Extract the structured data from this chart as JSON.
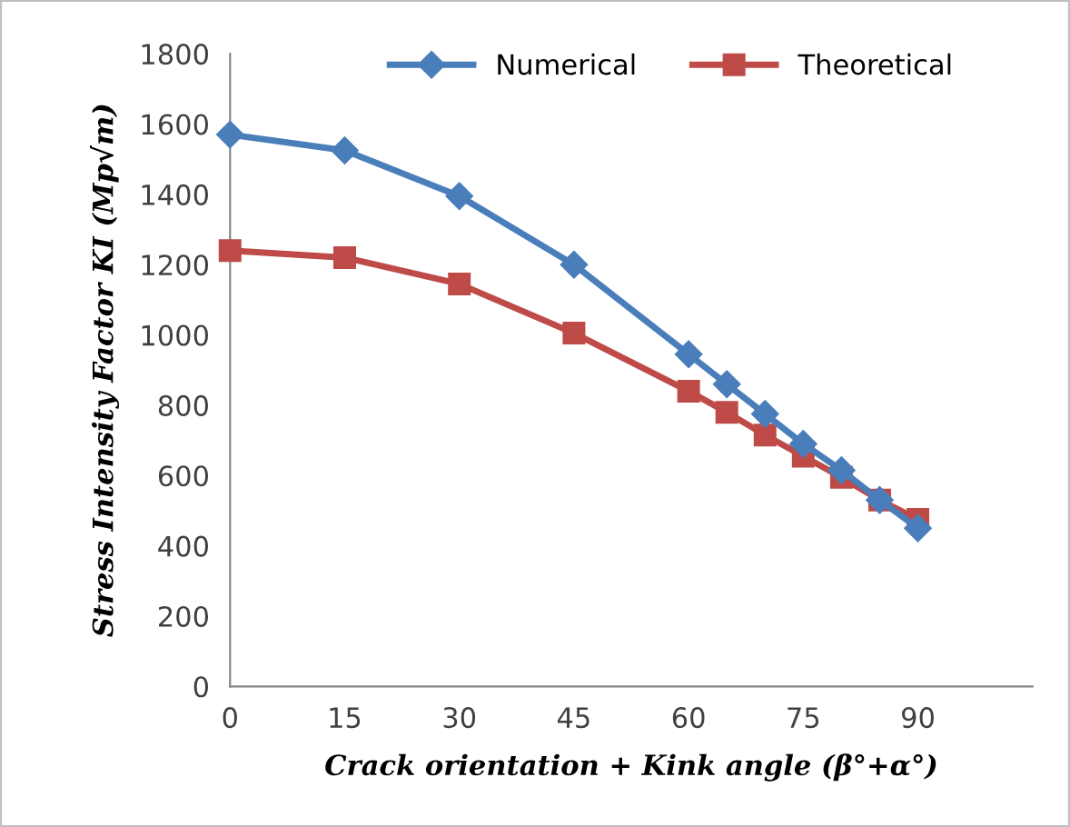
{
  "chart_data": {
    "type": "line",
    "xlabel": "Crack orientation + Kink angle (β°+α°)",
    "ylabel": "Stress Intensity Factor KI (Mp√m)",
    "x": [
      0,
      15,
      30,
      45,
      60,
      65,
      70,
      75,
      80,
      85,
      90
    ],
    "series": [
      {
        "name": "Numerical",
        "color": "#4a7ebb",
        "marker": "diamond",
        "values": [
          1570,
          1525,
          1395,
          1200,
          945,
          860,
          775,
          690,
          615,
          530,
          450
        ]
      },
      {
        "name": "Theoretical",
        "color": "#be4b48",
        "marker": "square",
        "values": [
          1240,
          1220,
          1145,
          1005,
          840,
          780,
          715,
          655,
          595,
          530,
          475
        ]
      }
    ],
    "xlim": [
      0,
      105
    ],
    "xticks": [
      0,
      15,
      30,
      45,
      60,
      75,
      90
    ],
    "ylim": [
      0,
      1800
    ],
    "yticks": [
      0,
      200,
      400,
      600,
      800,
      1000,
      1200,
      1400,
      1600,
      1800
    ],
    "grid": false,
    "legend": "top",
    "line_style": "solid"
  }
}
